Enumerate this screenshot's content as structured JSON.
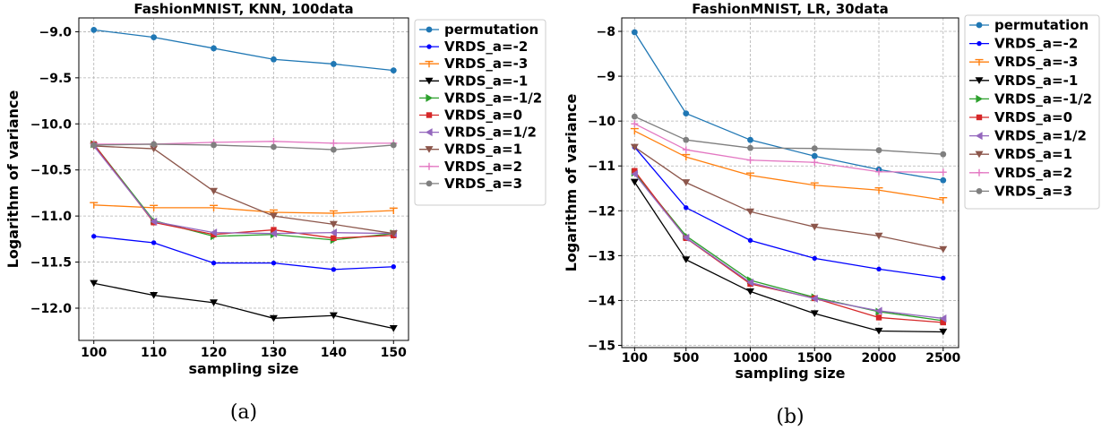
{
  "chart_data": [
    {
      "type": "line",
      "title": "FashionMNIST, KNN, 100data",
      "xlabel": "sampling size",
      "ylabel": "Logarithm of variance",
      "caption": "(a)",
      "x": [
        100,
        110,
        120,
        130,
        140,
        150
      ],
      "x_ticks": [
        "100",
        "110",
        "120",
        "130",
        "140",
        "150"
      ],
      "xlim": [
        98,
        152
      ],
      "ylim": [
        -12.35,
        -8.85
      ],
      "y_ticks": [
        -9.0,
        -9.5,
        -10.0,
        -10.5,
        -11.0,
        -11.5,
        -12.0
      ],
      "y_tick_labels": [
        "−9.0",
        "−9.5",
        "−10.0",
        "−10.5",
        "−11.0",
        "−11.5",
        "−12.0"
      ],
      "grid": true,
      "legend_position": "outside-right",
      "series": [
        {
          "name": "permutation",
          "color": "#1f77b4",
          "marker": "circle",
          "values": [
            -8.98,
            -9.06,
            -9.18,
            -9.3,
            -9.35,
            -9.42
          ]
        },
        {
          "name": "VRDS_a=-2",
          "color": "#0000ff",
          "marker": "dot",
          "values": [
            -11.22,
            -11.29,
            -11.51,
            -11.51,
            -11.58,
            -11.55
          ]
        },
        {
          "name": "VRDS_a=-3",
          "color": "#ff7f0e",
          "marker": "tri-down-line",
          "values": [
            -10.88,
            -10.91,
            -10.91,
            -10.96,
            -10.97,
            -10.94
          ]
        },
        {
          "name": "VRDS_a=-1",
          "color": "#000000",
          "marker": "triangle-down",
          "values": [
            -11.73,
            -11.86,
            -11.94,
            -12.11,
            -12.08,
            -12.22
          ]
        },
        {
          "name": "VRDS_a=-1/2",
          "color": "#2ca02c",
          "marker": "triangle-right",
          "values": [
            -10.22,
            -11.05,
            -11.22,
            -11.2,
            -11.26,
            -11.19
          ]
        },
        {
          "name": "VRDS_a=0",
          "color": "#d62728",
          "marker": "square",
          "values": [
            -10.22,
            -11.07,
            -11.2,
            -11.15,
            -11.24,
            -11.21
          ]
        },
        {
          "name": "VRDS_a=1/2",
          "color": "#9467bd",
          "marker": "triangle-left",
          "values": [
            -10.24,
            -11.06,
            -11.18,
            -11.19,
            -11.18,
            -11.19
          ]
        },
        {
          "name": "VRDS_a=1",
          "color": "#8c564b",
          "marker": "triangle-down",
          "values": [
            -10.24,
            -10.27,
            -10.73,
            -11.0,
            -11.09,
            -11.19
          ]
        },
        {
          "name": "VRDS_a=2",
          "color": "#e377c2",
          "marker": "plus",
          "values": [
            -10.22,
            -10.22,
            -10.2,
            -10.19,
            -10.21,
            -10.21
          ]
        },
        {
          "name": "VRDS_a=3",
          "color": "#7f7f7f",
          "marker": "circle",
          "values": [
            -10.23,
            -10.22,
            -10.23,
            -10.25,
            -10.28,
            -10.23
          ]
        }
      ]
    },
    {
      "type": "line",
      "title": "FashionMNIST, LR, 30data",
      "xlabel": "sampling size",
      "ylabel": "Logarithm of variance",
      "caption": "(b)",
      "x": [
        100,
        500,
        1000,
        1500,
        2000,
        2500
      ],
      "x_ticks": [
        "100",
        "500",
        "1000",
        "1500",
        "2000",
        "2500"
      ],
      "xlim": [
        0,
        2620
      ],
      "ylim": [
        -15.05,
        -7.7
      ],
      "y_ticks": [
        -8,
        -9,
        -10,
        -11,
        -12,
        -13,
        -14,
        -15
      ],
      "y_tick_labels": [
        "−8",
        "−9",
        "−10",
        "−11",
        "−12",
        "−13",
        "−14",
        "−15"
      ],
      "grid": true,
      "legend_position": "outside-right",
      "series": [
        {
          "name": "permutation",
          "color": "#1f77b4",
          "marker": "circle",
          "values": [
            -8.02,
            -9.83,
            -10.42,
            -10.78,
            -11.08,
            -11.32
          ]
        },
        {
          "name": "VRDS_a=-2",
          "color": "#0000ff",
          "marker": "dot",
          "values": [
            -10.58,
            -11.93,
            -12.66,
            -13.06,
            -13.3,
            -13.5
          ]
        },
        {
          "name": "VRDS_a=-3",
          "color": "#ff7f0e",
          "marker": "tri-down-line",
          "values": [
            -10.22,
            -10.8,
            -11.21,
            -11.43,
            -11.54,
            -11.76
          ]
        },
        {
          "name": "VRDS_a=-1",
          "color": "#000000",
          "marker": "triangle-down",
          "values": [
            -11.36,
            -13.09,
            -13.8,
            -14.29,
            -14.68,
            -14.7
          ]
        },
        {
          "name": "VRDS_a=-1/2",
          "color": "#2ca02c",
          "marker": "triangle-right",
          "values": [
            -11.15,
            -12.56,
            -13.55,
            -13.93,
            -14.25,
            -14.45
          ]
        },
        {
          "name": "VRDS_a=0",
          "color": "#d62728",
          "marker": "square",
          "values": [
            -11.11,
            -12.61,
            -13.63,
            -13.95,
            -14.38,
            -14.49
          ]
        },
        {
          "name": "VRDS_a=1/2",
          "color": "#9467bd",
          "marker": "triangle-left",
          "values": [
            -11.18,
            -12.6,
            -13.6,
            -13.96,
            -14.23,
            -14.4
          ]
        },
        {
          "name": "VRDS_a=1",
          "color": "#8c564b",
          "marker": "triangle-down",
          "values": [
            -10.58,
            -11.37,
            -12.02,
            -12.36,
            -12.56,
            -12.86
          ]
        },
        {
          "name": "VRDS_a=2",
          "color": "#e377c2",
          "marker": "plus",
          "values": [
            -10.06,
            -10.64,
            -10.87,
            -10.92,
            -11.13,
            -11.14
          ]
        },
        {
          "name": "VRDS_a=3",
          "color": "#7f7f7f",
          "marker": "circle",
          "values": [
            -9.9,
            -10.42,
            -10.6,
            -10.61,
            -10.65,
            -10.74
          ]
        }
      ]
    }
  ]
}
